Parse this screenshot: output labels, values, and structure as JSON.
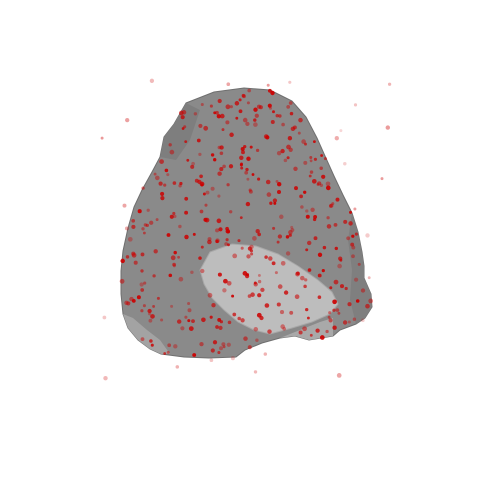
{
  "scene": {
    "background_color": "#ffffff",
    "mesh_color": "#8a8a8a",
    "mesh_edge_color": "#6f6f6f",
    "highlight_color": "#bdbdbd",
    "point_color": "#cc0000"
  }
}
